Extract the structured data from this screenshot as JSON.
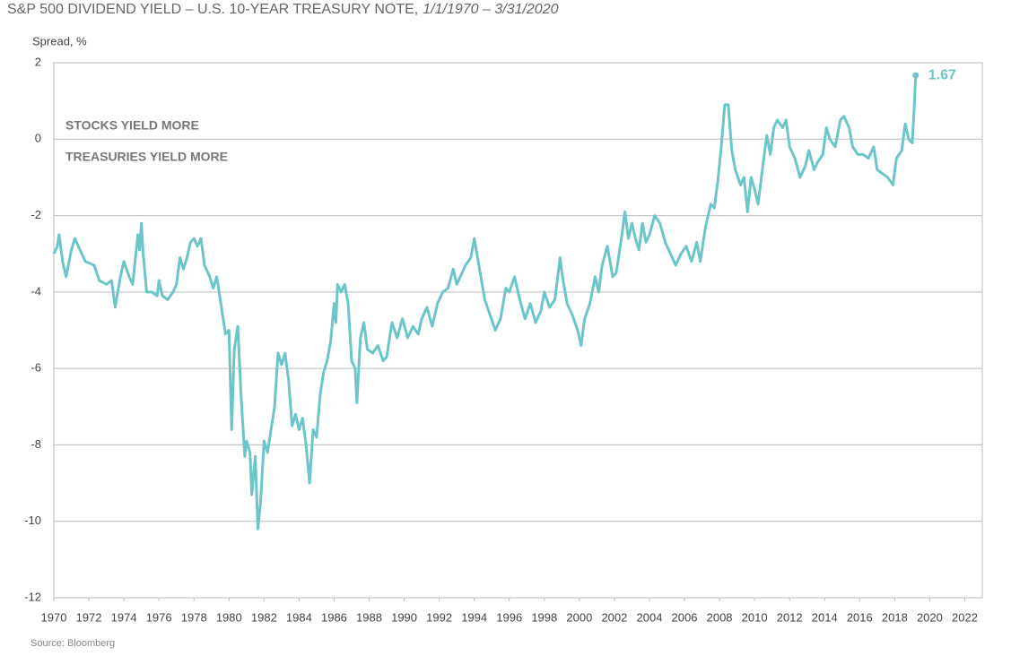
{
  "chart_data": {
    "type": "line",
    "title": "S&P 500 DIVIDEND YIELD – U.S. 10-YEAR TREASURY NOTE,",
    "title_dates": "1/1/1970 – 3/31/2020",
    "y_label": "Spread, %",
    "annotations": [
      "STOCKS YIELD MORE",
      "TREASURIES YIELD MORE"
    ],
    "source": "Source: Bloomberg",
    "xlim": [
      1970,
      2023
    ],
    "xticks": [
      1970,
      1972,
      1974,
      1976,
      1978,
      1980,
      1982,
      1984,
      1986,
      1988,
      1990,
      1992,
      1994,
      1996,
      1998,
      2000,
      2002,
      2004,
      2006,
      2008,
      2010,
      2012,
      2014,
      2016,
      2018,
      2020,
      2022
    ],
    "ylim": [
      -12,
      2
    ],
    "yticks": [
      -12,
      -10,
      -8,
      -6,
      -4,
      -2,
      0,
      2
    ],
    "grid": true,
    "x": [
      1970.0,
      1970.2,
      1970.3,
      1970.5,
      1970.7,
      1971.0,
      1971.2,
      1971.5,
      1971.8,
      1972.3,
      1972.6,
      1973.0,
      1973.3,
      1973.5,
      1973.8,
      1974.0,
      1974.3,
      1974.5,
      1974.8,
      1974.9,
      1975.0,
      1975.1,
      1975.3,
      1975.6,
      1975.9,
      1976.0,
      1976.2,
      1976.5,
      1976.8,
      1977.0,
      1977.2,
      1977.4,
      1977.6,
      1977.8,
      1978.0,
      1978.2,
      1978.4,
      1978.6,
      1978.9,
      1979.1,
      1979.3,
      1979.5,
      1979.8,
      1980.0,
      1980.15,
      1980.3,
      1980.5,
      1980.7,
      1980.9,
      1981.0,
      1981.2,
      1981.3,
      1981.5,
      1981.65,
      1981.8,
      1982.0,
      1982.2,
      1982.4,
      1982.6,
      1982.8,
      1983.0,
      1983.2,
      1983.4,
      1983.6,
      1983.8,
      1984.0,
      1984.2,
      1984.4,
      1984.6,
      1984.8,
      1985.0,
      1985.2,
      1985.4,
      1985.6,
      1985.8,
      1986.0,
      1986.1,
      1986.2,
      1986.4,
      1986.6,
      1986.8,
      1987.0,
      1987.2,
      1987.3,
      1987.5,
      1987.7,
      1987.9,
      1988.2,
      1988.5,
      1988.8,
      1989.0,
      1989.3,
      1989.6,
      1989.9,
      1990.2,
      1990.5,
      1990.8,
      1991.0,
      1991.3,
      1991.6,
      1991.9,
      1992.2,
      1992.5,
      1992.8,
      1993.0,
      1993.2,
      1993.5,
      1993.8,
      1994.0,
      1994.3,
      1994.6,
      1994.9,
      1995.2,
      1995.5,
      1995.8,
      1996.0,
      1996.3,
      1996.6,
      1996.9,
      1997.2,
      1997.5,
      1997.8,
      1998.0,
      1998.3,
      1998.6,
      1998.9,
      1999.0,
      1999.3,
      1999.6,
      1999.9,
      2000.1,
      2000.3,
      2000.6,
      2000.9,
      2001.1,
      2001.3,
      2001.6,
      2001.9,
      2002.1,
      2002.4,
      2002.6,
      2002.8,
      2003.0,
      2003.2,
      2003.4,
      2003.6,
      2003.8,
      2004.0,
      2004.3,
      2004.6,
      2004.9,
      2005.2,
      2005.5,
      2005.8,
      2006.1,
      2006.4,
      2006.7,
      2006.9,
      2007.2,
      2007.5,
      2007.7,
      2007.9,
      2008.1,
      2008.3,
      2008.5,
      2008.7,
      2008.9,
      2009.2,
      2009.4,
      2009.6,
      2009.8,
      2010.0,
      2010.2,
      2010.5,
      2010.7,
      2010.9,
      2011.1,
      2011.3,
      2011.6,
      2011.8,
      2012.0,
      2012.3,
      2012.6,
      2012.9,
      2013.1,
      2013.4,
      2013.6,
      2013.9,
      2014.1,
      2014.3,
      2014.6,
      2014.9,
      2015.1,
      2015.4,
      2015.6,
      2015.9,
      2016.2,
      2016.5,
      2016.8,
      2017.0,
      2017.3,
      2017.6,
      2017.9,
      2018.1,
      2018.4,
      2018.6,
      2018.8,
      2019.0,
      2019.1,
      2019.2
    ],
    "series": [
      {
        "color": "#6cc5c8",
        "values": [
          -3.0,
          -2.8,
          -2.5,
          -3.2,
          -3.6,
          -2.9,
          -2.6,
          -2.9,
          -3.2,
          -3.3,
          -3.7,
          -3.8,
          -3.7,
          -4.4,
          -3.6,
          -3.2,
          -3.6,
          -3.8,
          -2.5,
          -2.9,
          -2.2,
          -3.0,
          -4.0,
          -4.0,
          -4.1,
          -3.7,
          -4.1,
          -4.2,
          -4.0,
          -3.8,
          -3.1,
          -3.4,
          -3.1,
          -2.7,
          -2.6,
          -2.8,
          -2.6,
          -3.3,
          -3.6,
          -3.9,
          -3.6,
          -4.2,
          -5.1,
          -5.0,
          -7.6,
          -5.5,
          -4.9,
          -6.8,
          -8.3,
          -7.9,
          -8.2,
          -9.3,
          -8.3,
          -10.2,
          -9.5,
          -7.9,
          -8.2,
          -7.6,
          -7.0,
          -5.6,
          -5.9,
          -5.6,
          -6.3,
          -7.5,
          -7.2,
          -7.6,
          -7.3,
          -8.0,
          -9.0,
          -7.6,
          -7.8,
          -6.7,
          -6.1,
          -5.8,
          -5.3,
          -4.3,
          -4.8,
          -3.8,
          -4.0,
          -3.8,
          -4.3,
          -5.8,
          -6.0,
          -6.9,
          -5.2,
          -4.8,
          -5.5,
          -5.6,
          -5.4,
          -5.8,
          -5.7,
          -4.8,
          -5.2,
          -4.7,
          -5.2,
          -4.9,
          -5.1,
          -4.7,
          -4.4,
          -4.9,
          -4.3,
          -4.0,
          -3.9,
          -3.4,
          -3.8,
          -3.6,
          -3.3,
          -3.1,
          -2.6,
          -3.4,
          -4.2,
          -4.6,
          -5.0,
          -4.7,
          -3.9,
          -4.0,
          -3.6,
          -4.2,
          -4.7,
          -4.3,
          -4.8,
          -4.5,
          -4.0,
          -4.4,
          -4.2,
          -3.1,
          -3.5,
          -4.3,
          -4.6,
          -5.0,
          -5.4,
          -4.7,
          -4.3,
          -3.6,
          -4.0,
          -3.3,
          -2.8,
          -3.6,
          -3.5,
          -2.6,
          -1.9,
          -2.6,
          -2.2,
          -2.6,
          -2.9,
          -2.2,
          -2.7,
          -2.5,
          -2.0,
          -2.2,
          -2.7,
          -3.0,
          -3.3,
          -3.0,
          -2.8,
          -3.2,
          -2.7,
          -3.2,
          -2.3,
          -1.7,
          -1.8,
          -1.1,
          -0.2,
          0.9,
          0.9,
          -0.3,
          -0.8,
          -1.2,
          -1.0,
          -1.9,
          -1.0,
          -1.3,
          -1.7,
          -0.6,
          0.1,
          -0.4,
          0.3,
          0.5,
          0.3,
          0.5,
          -0.2,
          -0.5,
          -1.0,
          -0.7,
          -0.3,
          -0.8,
          -0.6,
          -0.4,
          0.3,
          0.0,
          -0.2,
          0.5,
          0.6,
          0.3,
          -0.2,
          -0.4,
          -0.4,
          -0.5,
          -0.2,
          -0.8,
          -0.9,
          -1.0,
          -1.2,
          -0.5,
          -0.3,
          0.4,
          0.0,
          -0.1,
          0.7,
          1.67
        ]
      }
    ]
  }
}
